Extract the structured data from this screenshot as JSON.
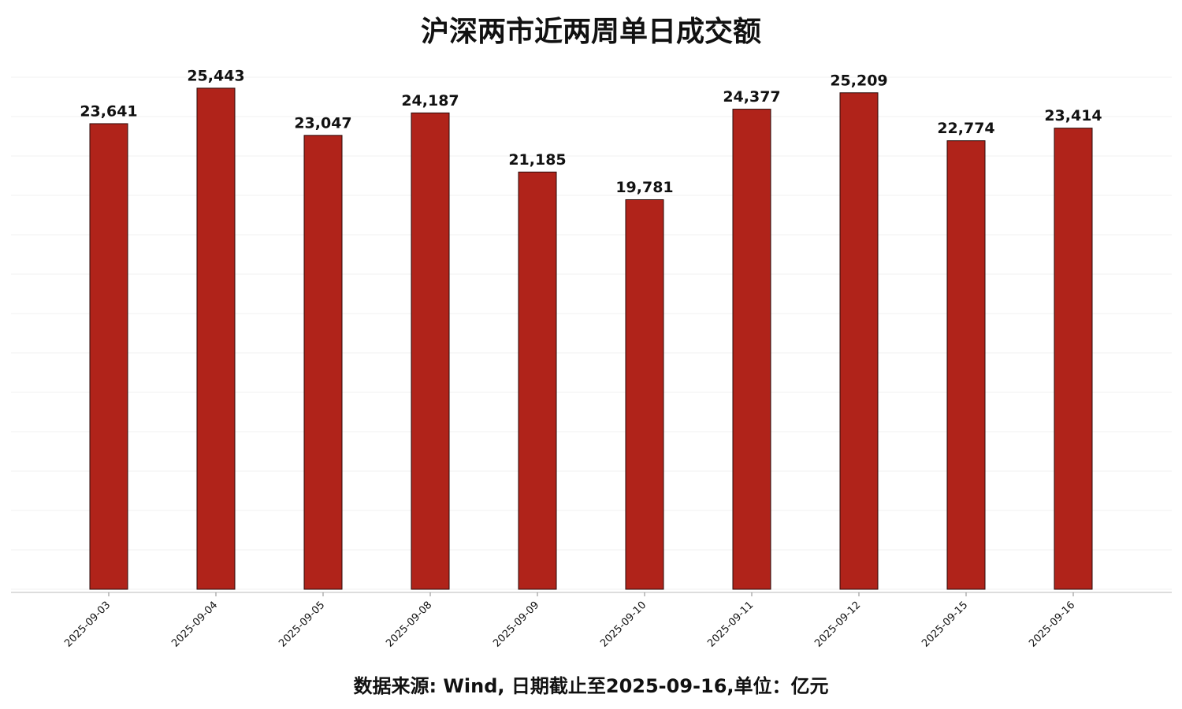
{
  "chart_data": {
    "type": "bar",
    "title": "沪深两市近两周单日成交额",
    "source": "数据来源: Wind, 日期截止至2025-09-16,单位：亿元",
    "categories": [
      "2025-09-03",
      "2025-09-04",
      "2025-09-05",
      "2025-09-08",
      "2025-09-09",
      "2025-09-10",
      "2025-09-11",
      "2025-09-12",
      "2025-09-15",
      "2025-09-16"
    ],
    "values": [
      23641,
      25443,
      23047,
      24187,
      21185,
      19781,
      24377,
      25209,
      22774,
      23414
    ],
    "value_labels": [
      "23,641",
      "25,443",
      "23,047",
      "24,187",
      "21,185",
      "19,781",
      "24,377",
      "25,209",
      "22,774",
      "23,414"
    ],
    "color": "#b0231a",
    "ylim": [
      0,
      26000
    ],
    "yticks": [
      0,
      2000,
      4000,
      6000,
      8000,
      10000,
      12000,
      14000,
      16000,
      18000,
      20000,
      22000,
      24000,
      26000
    ],
    "grid": true
  }
}
